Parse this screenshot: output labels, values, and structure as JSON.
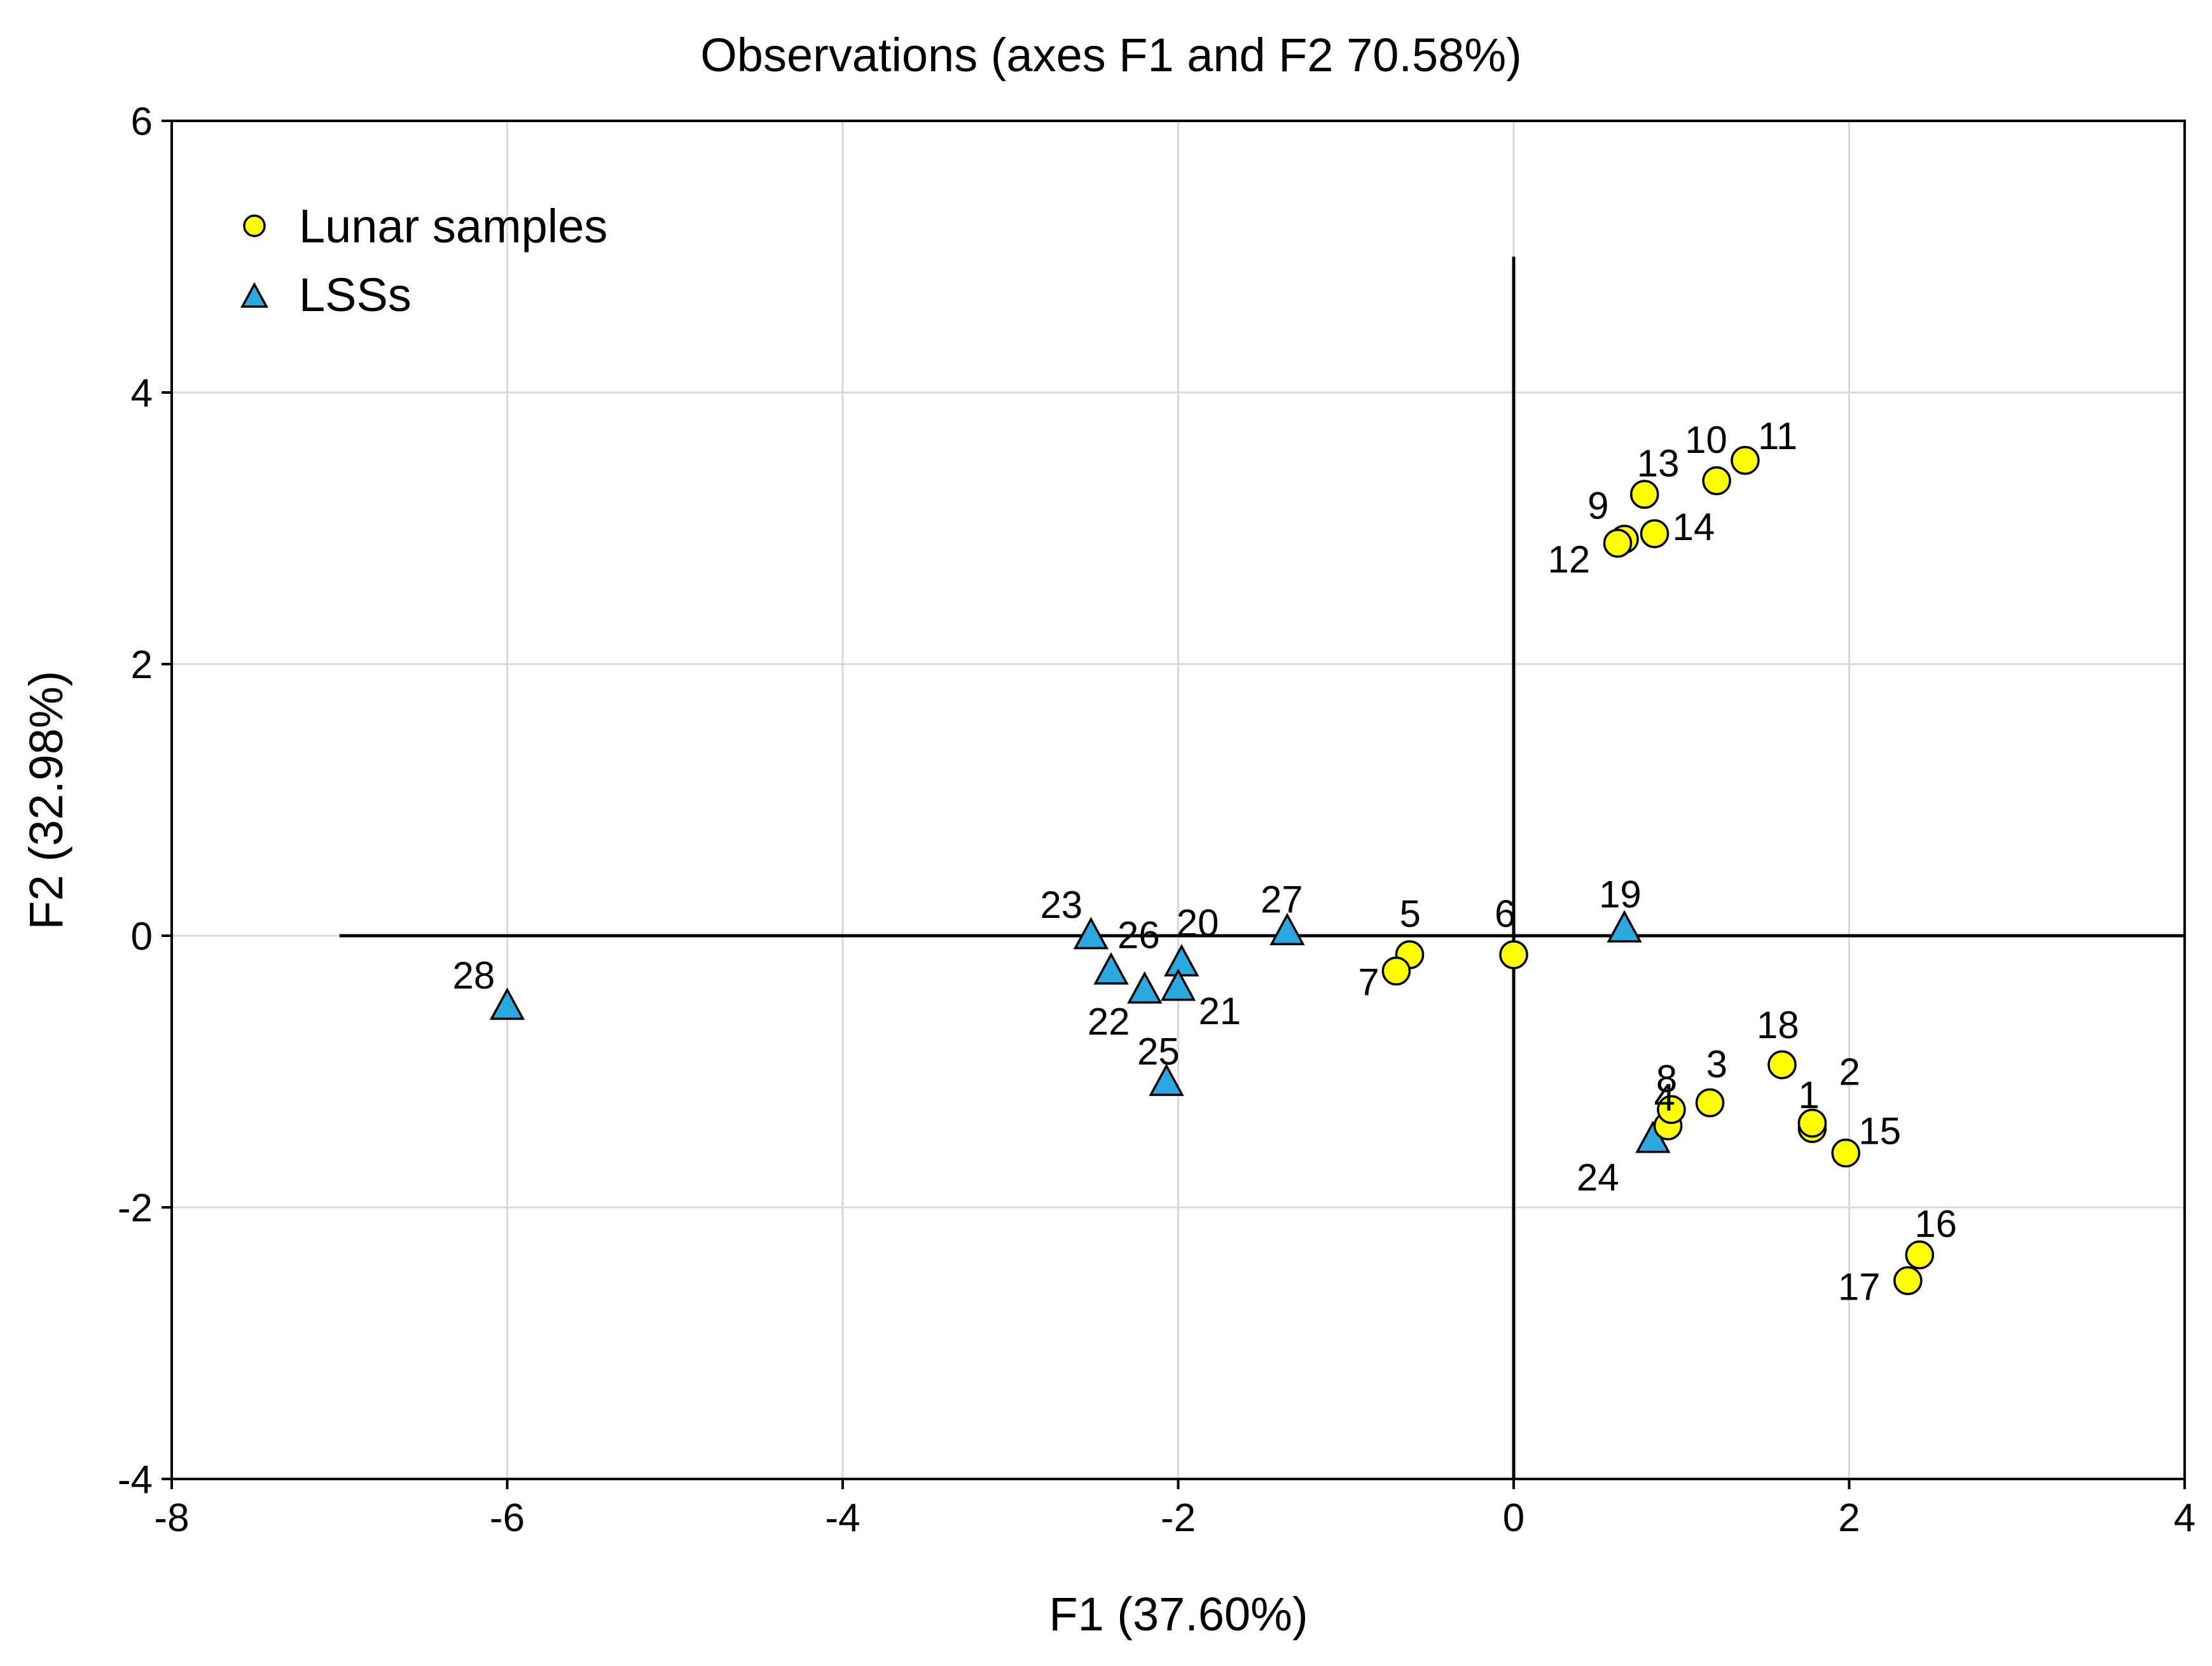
{
  "chart_data": {
    "type": "scatter",
    "title": "Observations (axes F1 and F2 70.58%)",
    "xlabel": "F1 (37.60%)",
    "ylabel": "F2 (32.98%)",
    "xlim": [
      -8,
      4
    ],
    "ylim": [
      -4,
      6
    ],
    "xticks": [
      "-8",
      "-6",
      "-4",
      "-2",
      "0",
      "2",
      "4"
    ],
    "yticks": [
      "-4",
      "-2",
      "0",
      "2",
      "4",
      "6"
    ],
    "grid": true,
    "legend_position": "top-left",
    "reference_lines": {
      "horizontal": {
        "y": 0,
        "x_from": -7,
        "x_to": 4
      },
      "vertical": {
        "x": 0,
        "y_from": -4,
        "y_to": 5
      }
    },
    "colors": {
      "lunar": "#ffff00",
      "lss": "#29a9e0",
      "grid": "#d9d9d9",
      "axis": "#000000"
    },
    "series": [
      {
        "name": "Lunar samples",
        "marker": "circle",
        "points": [
          {
            "label": "1",
            "x": 1.78,
            "y": -1.42
          },
          {
            "label": "2",
            "x": 1.78,
            "y": -1.38
          },
          {
            "label": "3",
            "x": 1.17,
            "y": -1.23
          },
          {
            "label": "4",
            "x": 0.92,
            "y": -1.4
          },
          {
            "label": "5",
            "x": -0.62,
            "y": -0.14
          },
          {
            "label": "6",
            "x": 0.0,
            "y": -0.14
          },
          {
            "label": "7",
            "x": -0.7,
            "y": -0.26
          },
          {
            "label": "8",
            "x": 0.94,
            "y": -1.28
          },
          {
            "label": "9",
            "x": 0.66,
            "y": 2.92
          },
          {
            "label": "10",
            "x": 1.21,
            "y": 3.35
          },
          {
            "label": "11",
            "x": 1.38,
            "y": 3.5
          },
          {
            "label": "12",
            "x": 0.62,
            "y": 2.89
          },
          {
            "label": "13",
            "x": 0.78,
            "y": 3.25
          },
          {
            "label": "14",
            "x": 0.84,
            "y": 2.96
          },
          {
            "label": "15",
            "x": 1.98,
            "y": -1.6
          },
          {
            "label": "16",
            "x": 2.42,
            "y": -2.35
          },
          {
            "label": "17",
            "x": 2.35,
            "y": -2.54
          },
          {
            "label": "18",
            "x": 1.6,
            "y": -0.95
          }
        ]
      },
      {
        "name": "LSSs",
        "marker": "triangle",
        "points": [
          {
            "label": "19",
            "x": 0.66,
            "y": 0.05
          },
          {
            "label": "20",
            "x": -1.98,
            "y": -0.2
          },
          {
            "label": "21",
            "x": -2.0,
            "y": -0.38
          },
          {
            "label": "22",
            "x": -2.2,
            "y": -0.4
          },
          {
            "label": "23",
            "x": -2.52,
            "y": 0.0
          },
          {
            "label": "24",
            "x": 0.83,
            "y": -1.5
          },
          {
            "label": "25",
            "x": -2.07,
            "y": -1.08
          },
          {
            "label": "26",
            "x": -2.4,
            "y": -0.26
          },
          {
            "label": "27",
            "x": -1.35,
            "y": 0.03
          },
          {
            "label": "28",
            "x": -6.0,
            "y": -0.52
          }
        ]
      }
    ]
  }
}
